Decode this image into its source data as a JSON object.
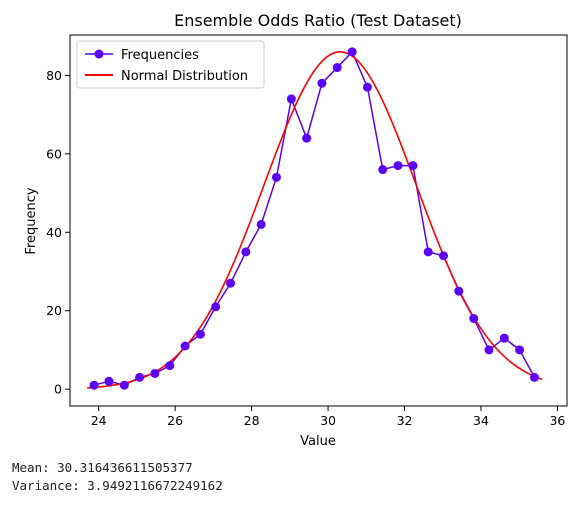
{
  "stats": {
    "mean_line": "Mean: 30.316436611505377",
    "variance_line": "Variance: 3.9492116672249162"
  },
  "chart_data": {
    "type": "line",
    "title": "Ensemble Odds Ratio (Test Dataset)",
    "xlabel": "Value",
    "ylabel": "Frequency",
    "xlim": [
      23.25,
      36.25
    ],
    "ylim": [
      -4.3,
      90.3
    ],
    "xticks": [
      24,
      26,
      28,
      30,
      32,
      34,
      36
    ],
    "yticks": [
      0,
      20,
      40,
      60,
      80
    ],
    "legend_position": "top-left",
    "grid": false,
    "series": [
      {
        "name": "Frequencies",
        "color": "#5c00f5",
        "marker": "circle",
        "x": [
          23.88,
          24.27,
          24.67,
          25.07,
          25.47,
          25.86,
          26.26,
          26.66,
          27.06,
          27.45,
          27.85,
          28.25,
          28.65,
          29.04,
          29.44,
          29.84,
          30.24,
          30.63,
          31.03,
          31.43,
          31.83,
          32.22,
          32.62,
          33.02,
          33.42,
          33.81,
          34.21,
          34.61,
          35.01,
          35.4
        ],
        "y": [
          1,
          2,
          1,
          3,
          4,
          6,
          11,
          14,
          21,
          27,
          35,
          42,
          54,
          74,
          64,
          78,
          82,
          86,
          77,
          56,
          57,
          57,
          35,
          34,
          25,
          18,
          10,
          13,
          10,
          3
        ]
      },
      {
        "name": "Normal Distribution",
        "color": "#ff0000",
        "marker": "none",
        "curve": {
          "kind": "normal",
          "mean": 30.316,
          "std": 1.987,
          "peak": 86.0,
          "x_range": [
            23.7,
            35.6
          ]
        }
      }
    ]
  }
}
